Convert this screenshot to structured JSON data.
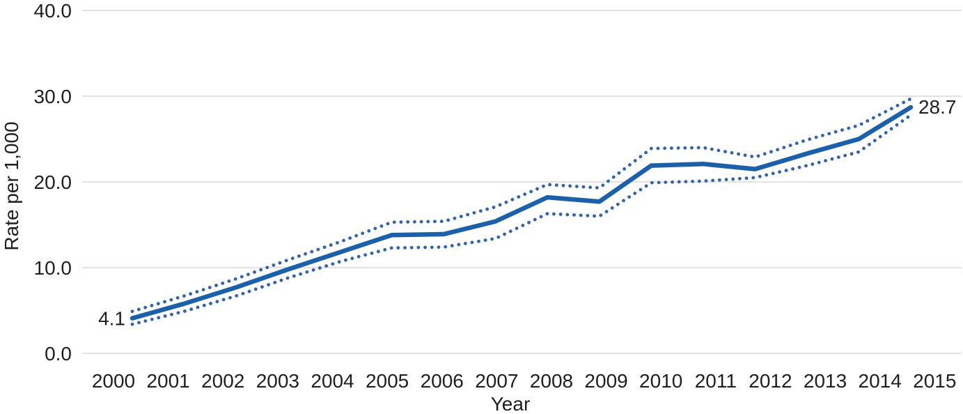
{
  "colors": {
    "line": "#1a61ad",
    "ci_band": "#3464ae",
    "gridline": "#d9d9d9",
    "text": "#1f1f1f",
    "background": "#ffffff"
  },
  "chart_data": {
    "type": "line",
    "title": "",
    "xlabel": "Year",
    "ylabel": "Rate per 1,000",
    "x": [
      2000,
      2001,
      2002,
      2003,
      2004,
      2005,
      2006,
      2007,
      2008,
      2009,
      2010,
      2011,
      2012,
      2013,
      2014,
      2015
    ],
    "series": [
      {
        "name": "Rate",
        "style": "solid",
        "values": [
          4.1,
          5.8,
          7.7,
          9.8,
          11.8,
          13.8,
          13.9,
          15.4,
          18.2,
          17.7,
          21.9,
          22.1,
          21.5,
          23.3,
          25.0,
          28.7
        ]
      },
      {
        "name": "Upper confidence band",
        "style": "dotted",
        "values": [
          4.9,
          6.7,
          8.7,
          10.9,
          13.0,
          15.3,
          15.4,
          17.1,
          19.7,
          19.3,
          23.9,
          24.0,
          22.9,
          24.9,
          26.6,
          29.7
        ]
      },
      {
        "name": "Lower confidence band",
        "style": "dotted",
        "values": [
          3.4,
          4.9,
          6.7,
          8.8,
          10.7,
          12.3,
          12.4,
          13.4,
          16.3,
          16.0,
          19.9,
          20.1,
          20.5,
          21.9,
          23.5,
          27.8
        ]
      }
    ],
    "point_labels": [
      {
        "series": 0,
        "index": 0,
        "text": "4.1"
      },
      {
        "series": 0,
        "index": 15,
        "text": "28.7"
      }
    ],
    "ylim": [
      0,
      40
    ],
    "ytick_labels": [
      "0.0",
      "10.0",
      "20.0",
      "30.0",
      "40.0"
    ],
    "ytick_values": [
      0,
      10,
      20,
      30,
      40
    ],
    "xtick_labels": [
      "2000",
      "2001",
      "2002",
      "2003",
      "2004",
      "2005",
      "2006",
      "2007",
      "2008",
      "2009",
      "2010",
      "2011",
      "2012",
      "2013",
      "2014",
      "2015"
    ],
    "grid": "horizontal",
    "legend": "none"
  }
}
